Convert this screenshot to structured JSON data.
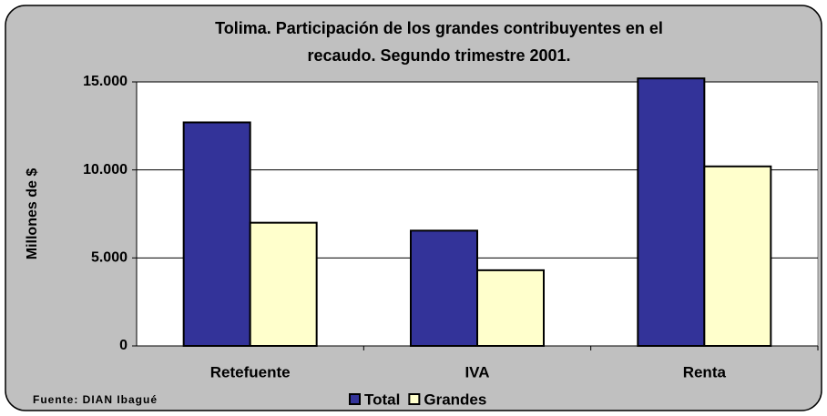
{
  "chart_data": {
    "type": "bar",
    "title": [
      "Tolima. Participación de los grandes contribuyentes en el",
      "recaudo. Segundo trimestre 2001."
    ],
    "ylabel": "Millones de $",
    "source": "Fuente: DIAN Ibagué",
    "categories": [
      "Retefuente",
      "IVA",
      "Renta"
    ],
    "series": [
      {
        "name": "Total",
        "color": "#333399",
        "values": [
          12700,
          6550,
          15200
        ]
      },
      {
        "name": "Grandes",
        "color": "#ffffcc",
        "values": [
          7000,
          4300,
          10200
        ]
      }
    ],
    "ylim": [
      0,
      15000
    ],
    "yticks": [
      0,
      {
        "value": 5000,
        "label": "5.000"
      },
      {
        "value": 10000,
        "label": "10.000"
      },
      {
        "value": 15000,
        "label": "15.000"
      }
    ],
    "grid": true,
    "legend": "bottom"
  }
}
